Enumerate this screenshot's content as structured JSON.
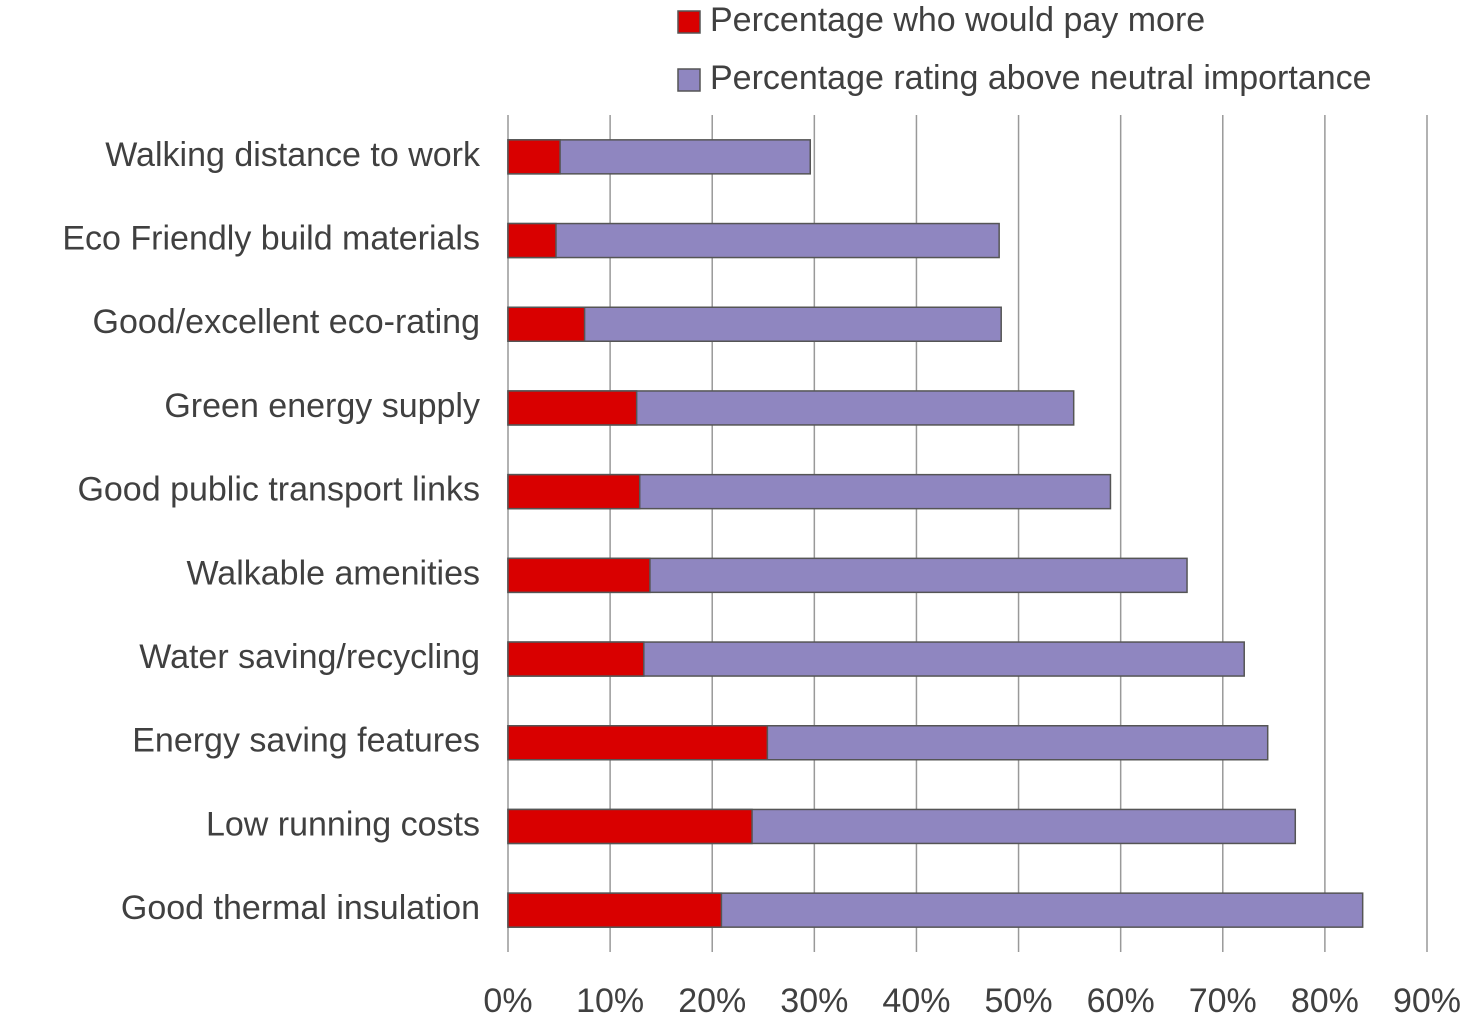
{
  "chart_data": {
    "type": "bar",
    "orientation": "horizontal",
    "overlap": true,
    "categories": [
      "Walking distance to work",
      "Eco Friendly build materials",
      "Good/excellent eco-rating",
      "Green energy supply",
      "Good public transport links",
      "Walkable amenities",
      "Water saving/recycling",
      "Energy saving features",
      "Low running costs",
      "Good thermal insulation"
    ],
    "series": [
      {
        "name": "Percentage rating above neutral importance",
        "color": "#8f86c0",
        "values": [
          29.6,
          48.1,
          48.3,
          55.4,
          59.0,
          66.5,
          72.1,
          74.4,
          77.1,
          83.7
        ]
      },
      {
        "name": "Percentage who would pay more",
        "color": "#d90000",
        "values": [
          5.1,
          4.7,
          7.5,
          12.6,
          12.9,
          13.9,
          13.3,
          25.4,
          23.9,
          20.9
        ]
      }
    ],
    "xlim": [
      0,
      90
    ],
    "xticks": [
      {
        "value": 0,
        "label": "0%"
      },
      {
        "value": 10,
        "label": "10%"
      },
      {
        "value": 20,
        "label": "20%"
      },
      {
        "value": 30,
        "label": "30%"
      },
      {
        "value": 40,
        "label": "40%"
      },
      {
        "value": 50,
        "label": "50%"
      },
      {
        "value": 60,
        "label": "60%"
      },
      {
        "value": 70,
        "label": "70%"
      },
      {
        "value": 80,
        "label": "80%"
      },
      {
        "value": 90,
        "label": "90%"
      }
    ],
    "grid": true,
    "legend": "top-right"
  }
}
